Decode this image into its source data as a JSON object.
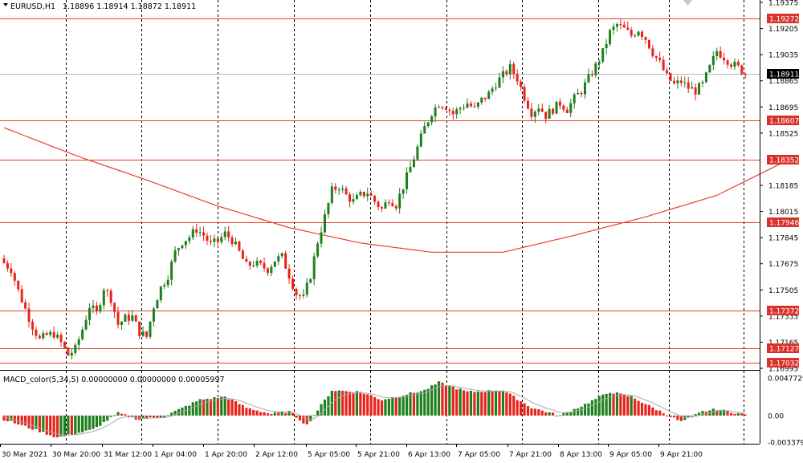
{
  "symbol_header": {
    "label": "EURUSD,H1",
    "ohlc": "1.18896 1.18914 1.18872 1.18911"
  },
  "indicator_header": {
    "label": "MACD_color(5,34,5) 0.00000000 0.00000000 0.00005997"
  },
  "colors": {
    "bull": "#1e7f1e",
    "bear": "#e8231a",
    "hline": "#e5402f",
    "ma": "#e5402f",
    "grid": "#000000",
    "macd_signal": "#a8a8a8",
    "badge_red": "#d9342b",
    "badge_current": "#000000"
  },
  "price_axis": {
    "ticks": [
      "1.19375",
      "1.19205",
      "1.19035",
      "1.18865",
      "1.18695",
      "1.18525",
      "1.18185",
      "1.18015",
      "1.17845",
      "1.17675",
      "1.17505",
      "1.17335",
      "1.17165",
      "1.16995"
    ],
    "badges": [
      {
        "text": "1.19272",
        "type": "line"
      },
      {
        "text": "1.18911",
        "type": "current"
      },
      {
        "text": "1.18607",
        "type": "line"
      },
      {
        "text": "1.18352",
        "type": "line"
      },
      {
        "text": "1.17946",
        "type": "line"
      },
      {
        "text": "1.17372",
        "type": "line"
      },
      {
        "text": "1.17127",
        "type": "line"
      },
      {
        "text": "1.17032",
        "type": "line"
      }
    ]
  },
  "macd_axis": {
    "ticks": [
      "0.0047729",
      "0.00",
      "-0.0033797"
    ]
  },
  "time_axis": {
    "labels": [
      "30 Mar 2021",
      "30 Mar 20:00",
      "31 Mar 12:00",
      "1 Apr 04:00",
      "1 Apr 20:00",
      "2 Apr 12:00",
      "5 Apr 05:00",
      "5 Apr 21:00",
      "6 Apr 13:00",
      "7 Apr 05:00",
      "7 Apr 21:00",
      "8 Apr 13:00",
      "9 Apr 05:00",
      "9 Apr 21:00"
    ]
  },
  "chart_data": {
    "type": "candlestick",
    "symbol": "EURUSD",
    "timeframe": "H1",
    "horizontal_levels": [
      1.19272,
      1.18607,
      1.18352,
      1.17946,
      1.17372,
      1.17127,
      1.17032
    ],
    "current_price": 1.18911,
    "y_range": [
      1.16995,
      1.19375
    ],
    "close_path": [
      [
        0,
        1.1768
      ],
      [
        2,
        1.1764
      ],
      [
        4,
        1.175
      ],
      [
        6,
        1.1738
      ],
      [
        8,
        1.1727
      ],
      [
        10,
        1.1718
      ],
      [
        12,
        1.1721
      ],
      [
        14,
        1.1722
      ],
      [
        16,
        1.1716
      ],
      [
        18,
        1.1708
      ],
      [
        20,
        1.1712
      ],
      [
        22,
        1.1725
      ],
      [
        24,
        1.174
      ],
      [
        26,
        1.1735
      ],
      [
        28,
        1.1752
      ],
      [
        30,
        1.1745
      ],
      [
        32,
        1.1728
      ],
      [
        34,
        1.1732
      ],
      [
        36,
        1.1733
      ],
      [
        38,
        1.1723
      ],
      [
        40,
        1.172
      ],
      [
        42,
        1.174
      ],
      [
        44,
        1.1752
      ],
      [
        46,
        1.176
      ],
      [
        48,
        1.1775
      ],
      [
        50,
        1.1782
      ],
      [
        52,
        1.1785
      ],
      [
        54,
        1.179
      ],
      [
        56,
        1.1786
      ],
      [
        58,
        1.178
      ],
      [
        60,
        1.1782
      ],
      [
        62,
        1.1787
      ],
      [
        64,
        1.1783
      ],
      [
        66,
        1.1775
      ],
      [
        68,
        1.1766
      ],
      [
        70,
        1.1768
      ],
      [
        72,
        1.1766
      ],
      [
        74,
        1.1764
      ],
      [
        76,
        1.177
      ],
      [
        78,
        1.1772
      ],
      [
        80,
        1.176
      ],
      [
        82,
        1.1748
      ],
      [
        84,
        1.1745
      ],
      [
        86,
        1.176
      ],
      [
        88,
        1.1782
      ],
      [
        90,
        1.1798
      ],
      [
        92,
        1.1815
      ],
      [
        94,
        1.1818
      ],
      [
        96,
        1.1812
      ],
      [
        98,
        1.1808
      ],
      [
        100,
        1.1812
      ],
      [
        102,
        1.1814
      ],
      [
        104,
        1.1808
      ],
      [
        106,
        1.1803
      ],
      [
        108,
        1.181
      ],
      [
        110,
        1.1806
      ],
      [
        112,
        1.1818
      ],
      [
        114,
        1.183
      ],
      [
        116,
        1.1843
      ],
      [
        118,
        1.1856
      ],
      [
        120,
        1.1866
      ],
      [
        122,
        1.1872
      ],
      [
        124,
        1.187
      ],
      [
        126,
        1.1865
      ],
      [
        128,
        1.1869
      ],
      [
        130,
        1.1872
      ],
      [
        132,
        1.1868
      ],
      [
        134,
        1.1874
      ],
      [
        136,
        1.1878
      ],
      [
        138,
        1.1885
      ],
      [
        140,
        1.189
      ],
      [
        142,
        1.1895
      ],
      [
        144,
        1.1888
      ],
      [
        146,
        1.1876
      ],
      [
        148,
        1.1866
      ],
      [
        150,
        1.187
      ],
      [
        152,
        1.1864
      ],
      [
        154,
        1.1868
      ],
      [
        156,
        1.1872
      ],
      [
        158,
        1.1868
      ],
      [
        160,
        1.1875
      ],
      [
        162,
        1.188
      ],
      [
        164,
        1.1888
      ],
      [
        166,
        1.1896
      ],
      [
        168,
        1.1905
      ],
      [
        170,
        1.1918
      ],
      [
        172,
        1.1923
      ],
      [
        174,
        1.192
      ],
      [
        176,
        1.1916
      ],
      [
        178,
        1.192
      ],
      [
        180,
        1.1914
      ],
      [
        182,
        1.1905
      ],
      [
        184,
        1.1898
      ],
      [
        186,
        1.1889
      ],
      [
        188,
        1.1884
      ],
      [
        190,
        1.1886
      ],
      [
        192,
        1.1882
      ],
      [
        194,
        1.188
      ],
      [
        196,
        1.1884
      ],
      [
        198,
        1.1895
      ],
      [
        200,
        1.1906
      ],
      [
        202,
        1.1902
      ],
      [
        204,
        1.1898
      ],
      [
        206,
        1.1895
      ],
      [
        208,
        1.1891
      ]
    ],
    "moving_average": [
      [
        0,
        1.1856
      ],
      [
        20,
        1.1838
      ],
      [
        40,
        1.1822
      ],
      [
        60,
        1.1805
      ],
      [
        80,
        1.1791
      ],
      [
        100,
        1.1781
      ],
      [
        120,
        1.1775
      ],
      [
        140,
        1.1775
      ],
      [
        160,
        1.1786
      ],
      [
        180,
        1.1798
      ],
      [
        200,
        1.1812
      ],
      [
        220,
        1.1835
      ]
    ],
    "macd_histogram_path": [
      [
        0,
        -0.0005
      ],
      [
        10,
        -0.002
      ],
      [
        15,
        -0.0028
      ],
      [
        25,
        -0.0018
      ],
      [
        32,
        0.0003
      ],
      [
        38,
        -0.0005
      ],
      [
        45,
        -0.0001
      ],
      [
        55,
        0.002
      ],
      [
        62,
        0.0024
      ],
      [
        68,
        0.001
      ],
      [
        75,
        0.0002
      ],
      [
        80,
        0.0005
      ],
      [
        85,
        -0.0012
      ],
      [
        92,
        0.0032
      ],
      [
        100,
        0.003
      ],
      [
        106,
        0.002
      ],
      [
        118,
        0.0032
      ],
      [
        122,
        0.0042
      ],
      [
        130,
        0.003
      ],
      [
        140,
        0.0032
      ],
      [
        148,
        0.001
      ],
      [
        156,
        0.0
      ],
      [
        162,
        0.0012
      ],
      [
        170,
        0.003
      ],
      [
        176,
        0.0024
      ],
      [
        182,
        0.001
      ],
      [
        190,
        -0.0008
      ],
      [
        196,
        0.0005
      ],
      [
        200,
        0.0008
      ],
      [
        208,
        0.0001
      ]
    ]
  }
}
